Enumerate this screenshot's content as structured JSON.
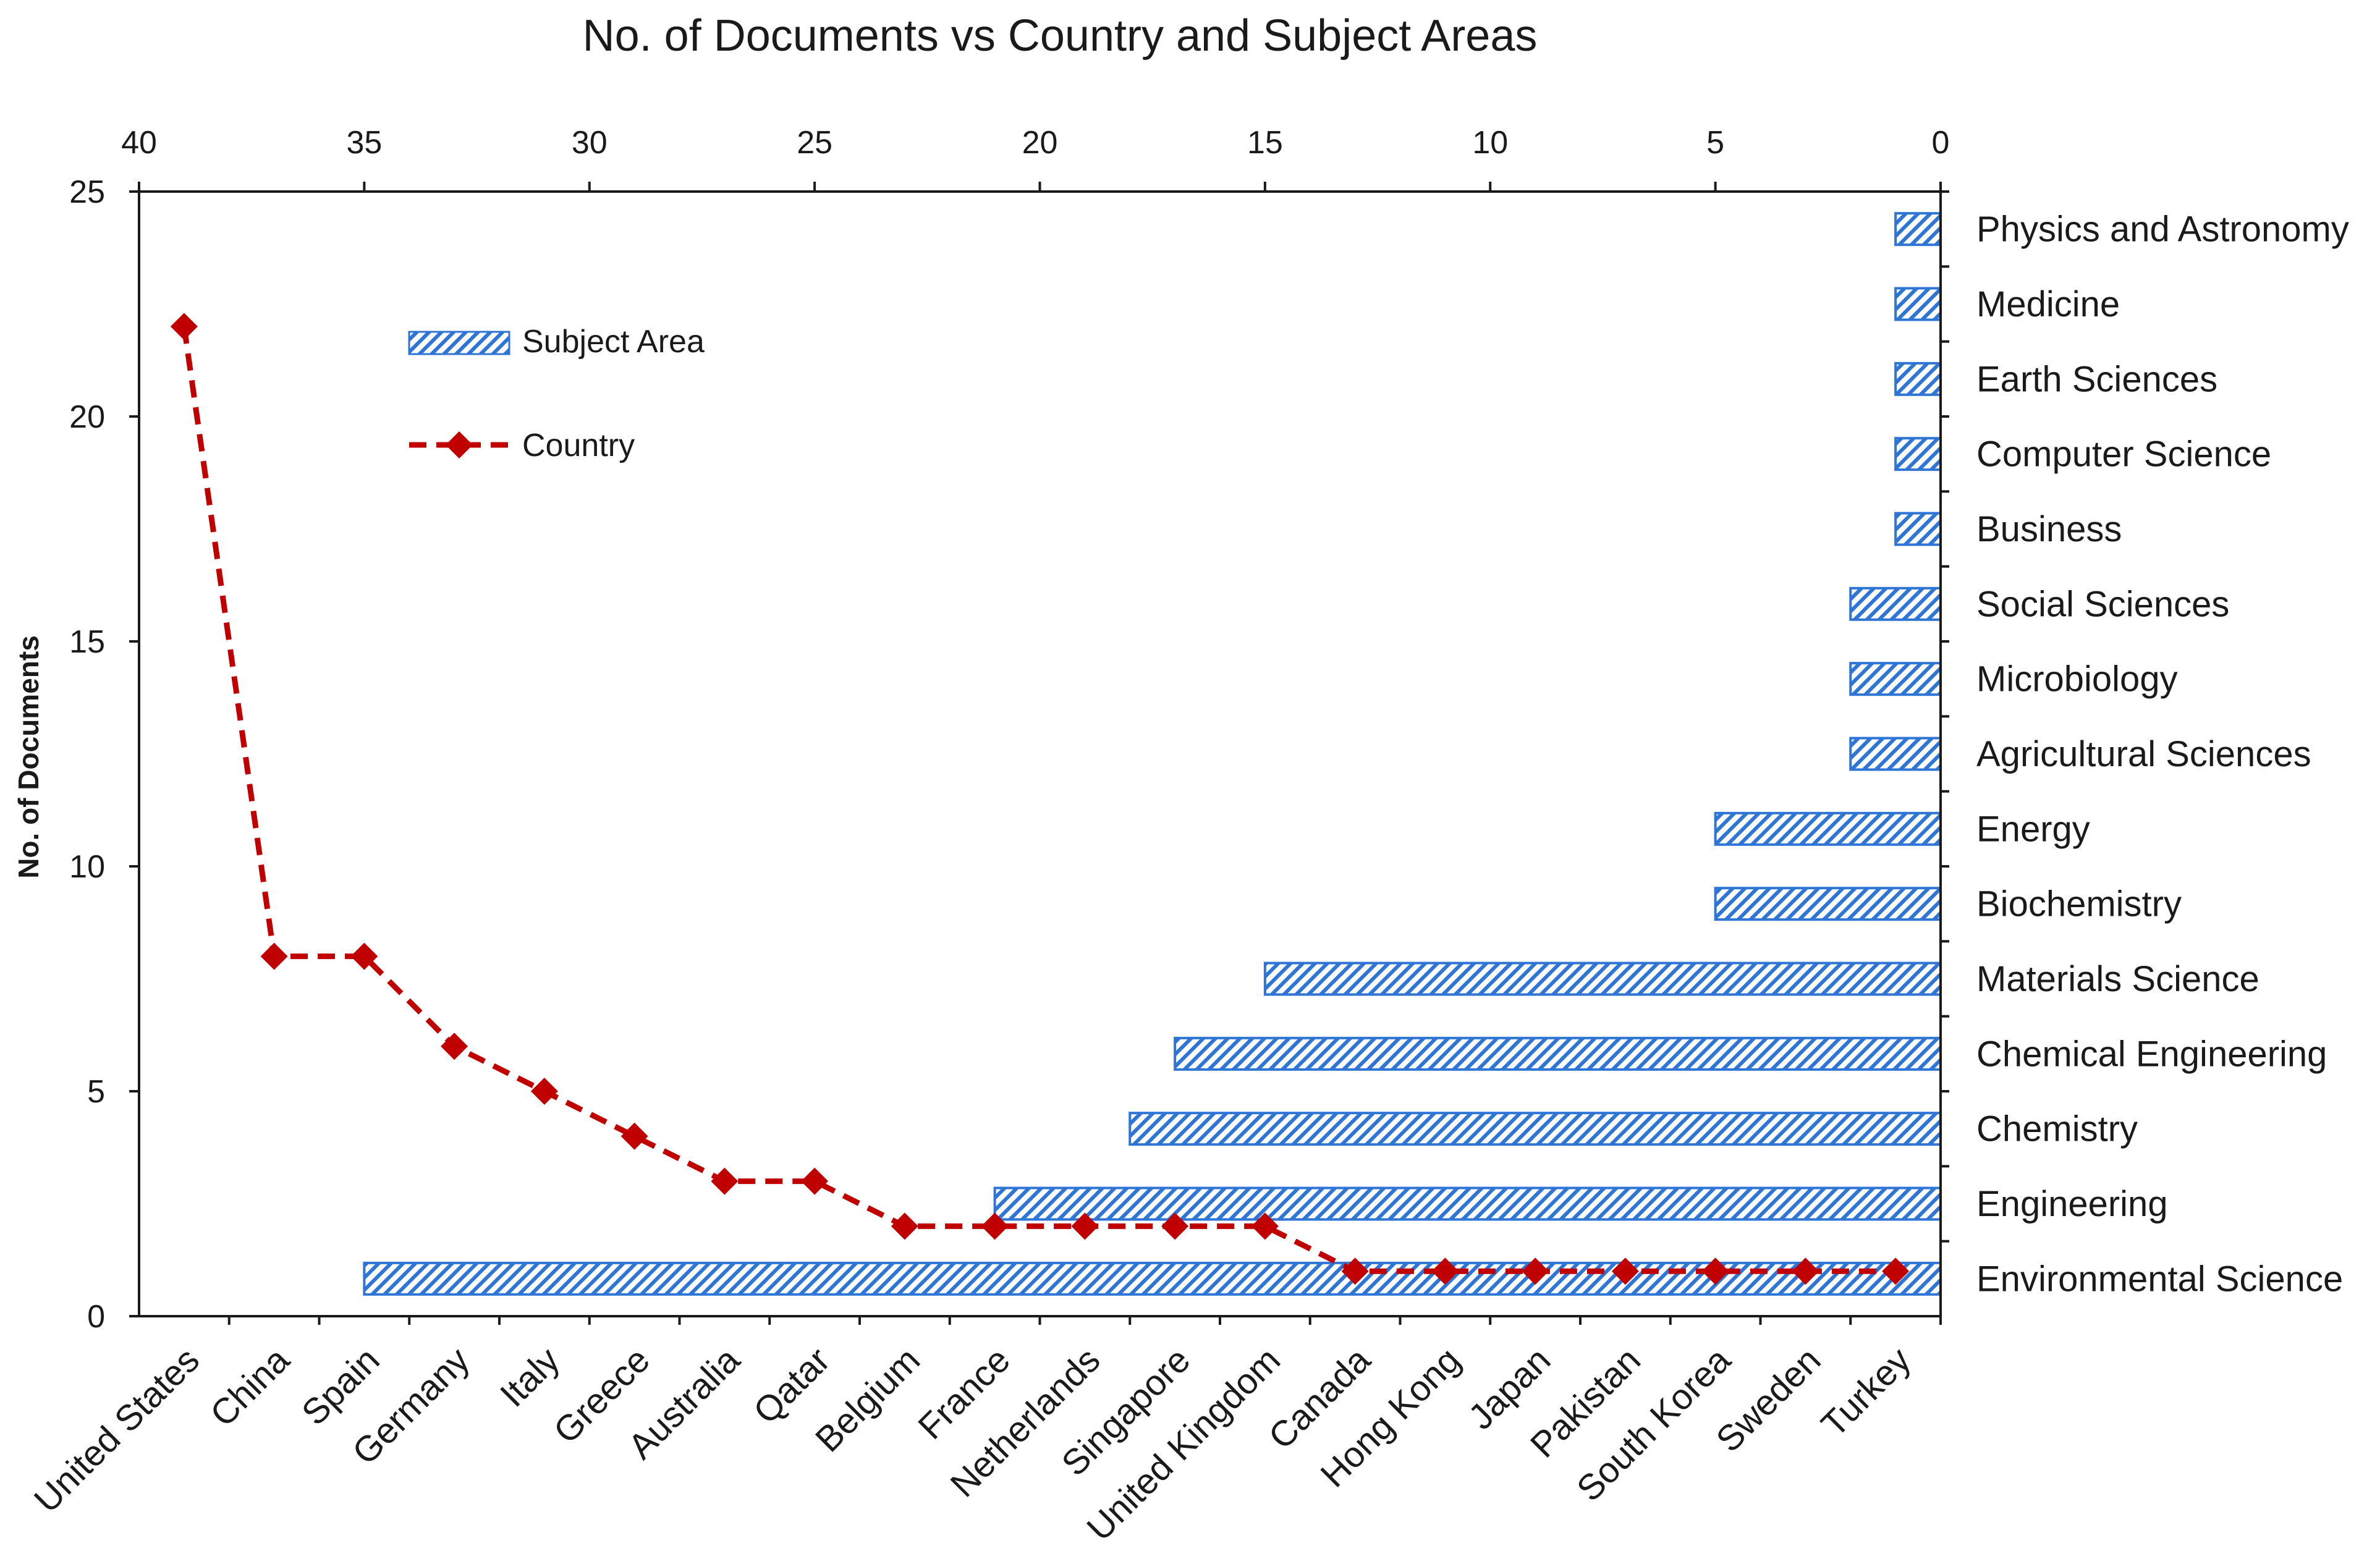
{
  "chart_data": {
    "type": "combo-bar-line",
    "title": "No. of Documents vs Country and Subject Areas",
    "ylabel": "No. of Documents",
    "ylim": [
      0,
      25
    ],
    "yticks": [
      0,
      5,
      10,
      15,
      20,
      25
    ],
    "top_axis": {
      "ticks": [
        40,
        35,
        30,
        25,
        20,
        15,
        10,
        5,
        0
      ],
      "range": [
        40,
        0
      ]
    },
    "legend": {
      "bar_label": "Subject Area",
      "line_label": "Country"
    },
    "colors": {
      "bar": "#2e75d6",
      "line": "#c00000"
    },
    "subject_areas": {
      "categories": [
        "Physics and Astronomy",
        "Medicine",
        "Earth Sciences",
        "Computer Science",
        "Business",
        "Social Sciences",
        "Microbiology",
        "Agricultural Sciences",
        "Energy",
        "Biochemistry",
        "Materials Science",
        "Chemical Engineering",
        "Chemistry",
        "Engineering",
        "Environmental Science"
      ],
      "values": [
        1,
        1,
        1,
        1,
        1,
        2,
        2,
        2,
        5,
        5,
        15,
        17,
        18,
        21,
        35
      ]
    },
    "countries": {
      "categories": [
        "United States",
        "China",
        "Spain",
        "Germany",
        "Italy",
        "Greece",
        "Australia",
        "Qatar",
        "Belgium",
        "France",
        "Netherlands",
        "Singapore",
        "United Kingdom",
        "Canada",
        "Hong Kong",
        "Japan",
        "Pakistan",
        "South Korea",
        "Sweden",
        "Turkey"
      ],
      "values": [
        22,
        8,
        8,
        6,
        5,
        4,
        3,
        3,
        2,
        2,
        2,
        2,
        2,
        1,
        1,
        1,
        1,
        1,
        1,
        1
      ]
    }
  }
}
